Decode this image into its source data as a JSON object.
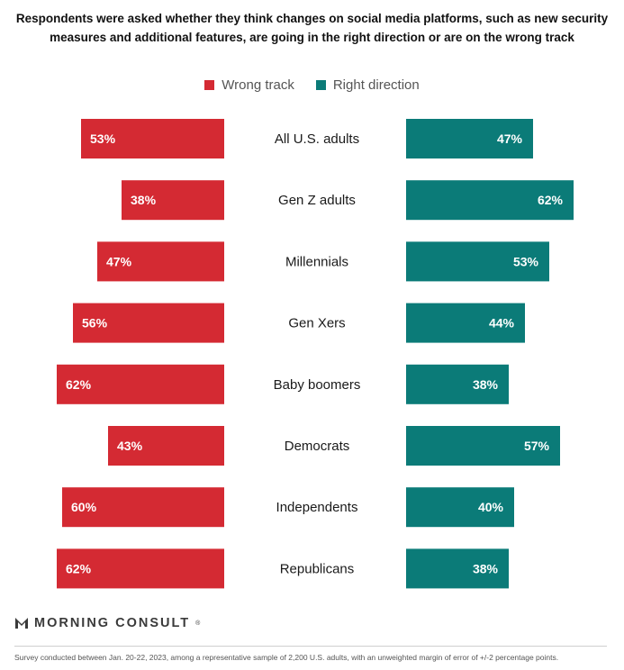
{
  "chart_data": {
    "type": "bar",
    "layout": "diverging-horizontal",
    "title": "Respondents were asked whether they think changes on social media platforms, such as new security measures and additional features, are going in the right direction or are on the wrong track",
    "categories": [
      "All U.S. adults",
      "Gen Z adults",
      "Millennials",
      "Gen Xers",
      "Baby boomers",
      "Democrats",
      "Independents",
      "Republicans"
    ],
    "series": [
      {
        "name": "Wrong track",
        "color": "#d42a33",
        "values": [
          53,
          38,
          47,
          56,
          62,
          43,
          60,
          62
        ]
      },
      {
        "name": "Right direction",
        "color": "#0b7b78",
        "values": [
          47,
          62,
          53,
          44,
          38,
          57,
          40,
          38
        ]
      }
    ],
    "value_suffix": "%",
    "xlim": [
      0,
      70
    ]
  },
  "brand": {
    "name": "MORNING CONSULT",
    "mark": "®"
  },
  "footnote": "Survey conducted between Jan. 20-22, 2023, among a representative sample of 2,200 U.S. adults, with an unweighted margin of error of +/-2 percentage points."
}
